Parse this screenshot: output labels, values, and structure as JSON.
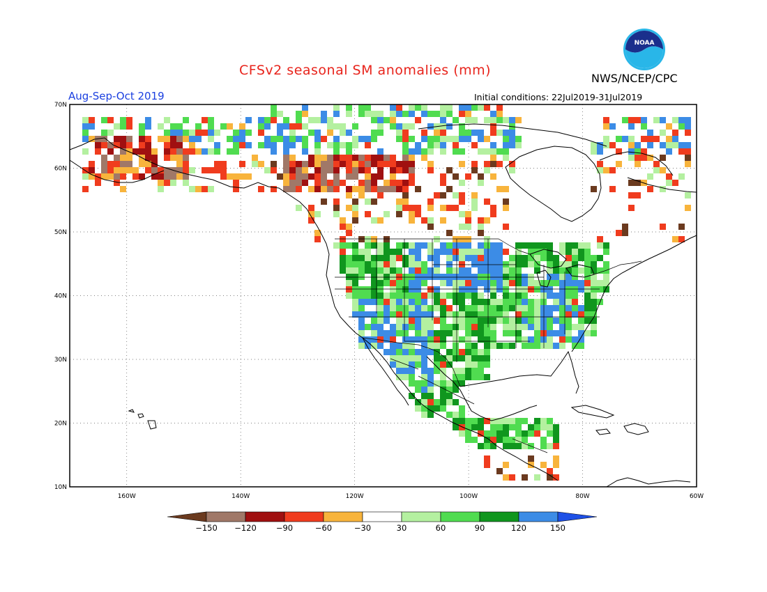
{
  "title": "CFSv2 seasonal SM anomalies (mm)",
  "period": "Aug-Sep-Oct 2019",
  "initial_conditions": "Initial conditions: 22Jul2019-31Jul2019",
  "agency": "NWS/NCEP/CPC",
  "logo_text": "NOAA",
  "map": {
    "lat_labels": [
      "70N",
      "60N",
      "50N",
      "40N",
      "30N",
      "20N",
      "10N"
    ],
    "lon_labels": [
      "160W",
      "140W",
      "120W",
      "100W",
      "80W",
      "60W"
    ],
    "lat_range": [
      10,
      70
    ],
    "lon_range": [
      -170,
      -60
    ]
  },
  "colorbar": {
    "labels": [
      "-150",
      "-120",
      "-90",
      "-60",
      "-30",
      "30",
      "60",
      "90",
      "120",
      "150"
    ],
    "colors": [
      "#6b3a1f",
      "#a07868",
      "#a01010",
      "#f03c1e",
      "#f8b43c",
      "#ffffff",
      "#b4f0a0",
      "#50dc50",
      "#10961e",
      "#3c8ce6",
      "#1e50e6"
    ]
  }
}
